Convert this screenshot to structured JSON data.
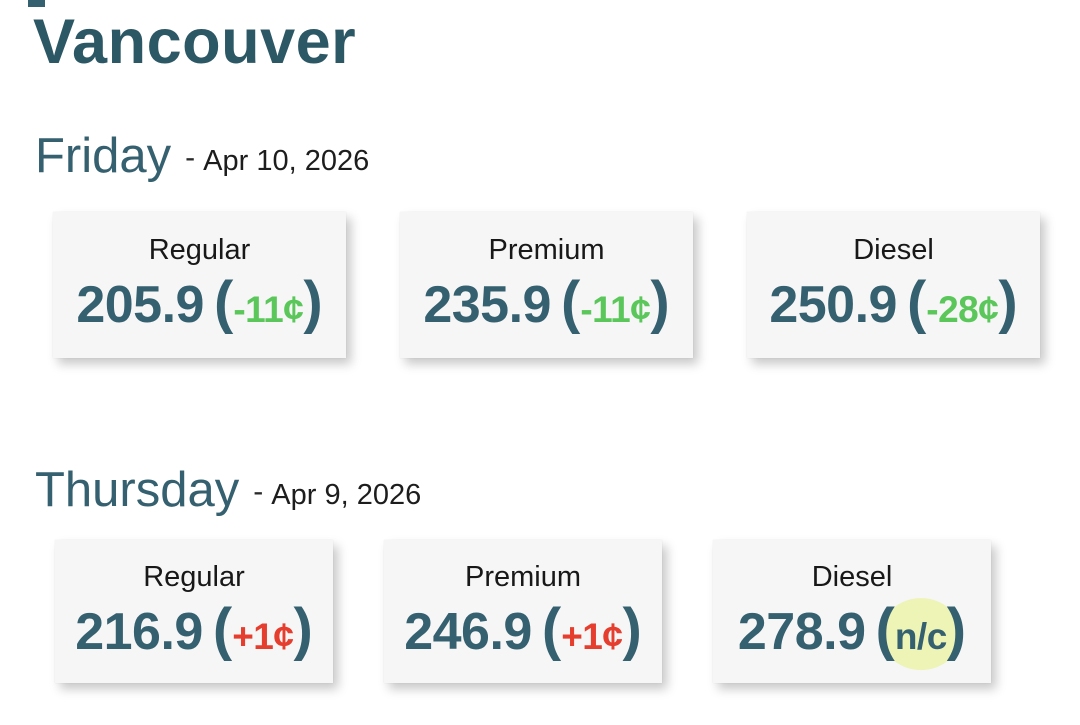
{
  "title": "Vancouver",
  "colors": {
    "teal": "#35606F",
    "teal_dark": "#2C5765",
    "green": "#5BC75B",
    "red": "#E53E2E",
    "nc_highlight": "#EEF4B6",
    "card_bg": "#F6F6F6"
  },
  "symbols": {
    "open_paren": "(",
    "close_paren": ")",
    "dash": "-"
  },
  "sections": [
    {
      "day": "Friday",
      "date": "Apr 10, 2026",
      "cards": [
        {
          "label": "Regular",
          "price": "205.9",
          "change": "-11¢",
          "direction": "down"
        },
        {
          "label": "Premium",
          "price": "235.9",
          "change": "-11¢",
          "direction": "down"
        },
        {
          "label": "Diesel",
          "price": "250.9",
          "change": "-28¢",
          "direction": "down"
        }
      ]
    },
    {
      "day": "Thursday",
      "date": "Apr 9, 2026",
      "cards": [
        {
          "label": "Regular",
          "price": "216.9",
          "change": "+1¢",
          "direction": "up"
        },
        {
          "label": "Premium",
          "price": "246.9",
          "change": "+1¢",
          "direction": "up"
        },
        {
          "label": "Diesel",
          "price": "278.9",
          "change": "n/c",
          "direction": "none",
          "highlighted": true
        }
      ]
    }
  ]
}
